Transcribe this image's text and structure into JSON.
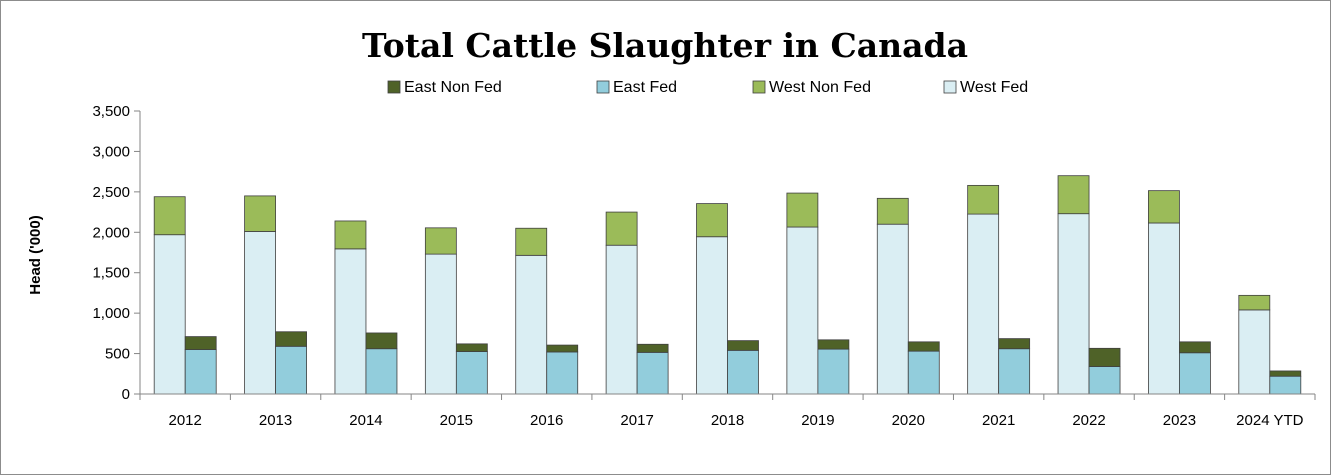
{
  "chart_data": {
    "type": "bar",
    "stacked": true,
    "title": "Total Cattle Slaughter in Canada",
    "ylabel": "Head ('000)",
    "xlabel": "",
    "ylim": [
      0,
      3500
    ],
    "yticks": [
      0,
      500,
      1000,
      1500,
      2000,
      2500,
      3000,
      3500
    ],
    "ytick_labels": [
      "0",
      "500",
      "1,000",
      "1,500",
      "2,000",
      "2,500",
      "3,000",
      "3,500"
    ],
    "legend_position": "top",
    "grid": false,
    "categories": [
      "2012",
      "2013",
      "2014",
      "2015",
      "2016",
      "2017",
      "2018",
      "2019",
      "2020",
      "2021",
      "2022",
      "2023",
      "2024 YTD"
    ],
    "groups": [
      {
        "name": "West",
        "series": [
          "West Fed",
          "West Non Fed"
        ]
      },
      {
        "name": "East",
        "series": [
          "East Fed",
          "East Non Fed"
        ]
      }
    ],
    "series": [
      {
        "name": "West Fed",
        "group": "West",
        "color": "#DAEEF3",
        "values": [
          1970,
          2010,
          1795,
          1730,
          1715,
          1840,
          1945,
          2065,
          2100,
          2225,
          2230,
          2115,
          1040
        ]
      },
      {
        "name": "West Non Fed",
        "group": "West",
        "color": "#9BBB59",
        "values": [
          470,
          440,
          345,
          325,
          335,
          410,
          410,
          420,
          320,
          355,
          470,
          400,
          180
        ]
      },
      {
        "name": "East Fed",
        "group": "East",
        "color": "#92CDDC",
        "values": [
          550,
          590,
          560,
          525,
          520,
          515,
          540,
          555,
          530,
          560,
          340,
          510,
          220
        ]
      },
      {
        "name": "East Non Fed",
        "group": "East",
        "color": "#4F6228",
        "values": [
          160,
          180,
          195,
          95,
          85,
          100,
          120,
          115,
          115,
          125,
          225,
          135,
          65
        ]
      }
    ],
    "legend_order": [
      "East Non Fed",
      "East Fed",
      "West Non Fed",
      "West Fed"
    ]
  }
}
